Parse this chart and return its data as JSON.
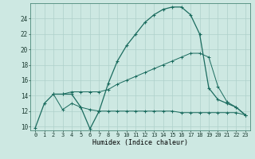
{
  "xlabel": "Humidex (Indice chaleur)",
  "xlim": [
    -0.5,
    23.5
  ],
  "ylim": [
    9.5,
    26.0
  ],
  "yticks": [
    10,
    12,
    14,
    16,
    18,
    20,
    22,
    24
  ],
  "xticks": [
    0,
    1,
    2,
    3,
    4,
    5,
    6,
    7,
    8,
    9,
    10,
    11,
    12,
    13,
    14,
    15,
    16,
    17,
    18,
    19,
    20,
    21,
    22,
    23
  ],
  "bg_color": "#cde8e2",
  "grid_color": "#aed0ca",
  "line_color": "#1a6b5e",
  "curves": {
    "curve1": {
      "x": [
        0,
        1,
        2,
        3,
        4,
        5,
        6,
        7,
        8,
        9,
        10,
        11,
        12,
        13,
        14,
        15,
        16,
        17,
        18,
        19,
        20,
        21,
        22,
        23
      ],
      "y": [
        9.8,
        13.0,
        14.2,
        14.2,
        14.2,
        12.5,
        9.7,
        12.0,
        15.6,
        18.5,
        20.5,
        22.0,
        23.5,
        24.5,
        25.2,
        25.5,
        25.5,
        24.5,
        22.0,
        15.0,
        13.5,
        13.0,
        12.5,
        11.5
      ]
    },
    "curve2": {
      "x": [
        2,
        3,
        4,
        5,
        6,
        7,
        8,
        9,
        10,
        11,
        12,
        13,
        14,
        15,
        16,
        17,
        18,
        19,
        20,
        21,
        22,
        23
      ],
      "y": [
        14.2,
        12.2,
        13.0,
        12.5,
        12.2,
        12.0,
        12.0,
        12.0,
        12.0,
        12.0,
        12.0,
        12.0,
        12.0,
        12.0,
        11.8,
        11.8,
        11.8,
        11.8,
        11.8,
        11.8,
        11.8,
        11.5
      ]
    },
    "curve3": {
      "x": [
        2,
        3,
        4,
        5,
        6,
        7,
        8,
        9,
        10,
        11,
        12,
        13,
        14,
        15,
        16,
        17,
        18,
        19,
        20,
        21,
        22,
        23
      ],
      "y": [
        14.2,
        14.2,
        14.5,
        14.5,
        14.5,
        14.5,
        14.8,
        15.5,
        16.0,
        16.5,
        17.0,
        17.5,
        18.0,
        18.5,
        19.0,
        19.5,
        19.5,
        19.0,
        15.2,
        13.2,
        12.5,
        11.5
      ]
    }
  }
}
